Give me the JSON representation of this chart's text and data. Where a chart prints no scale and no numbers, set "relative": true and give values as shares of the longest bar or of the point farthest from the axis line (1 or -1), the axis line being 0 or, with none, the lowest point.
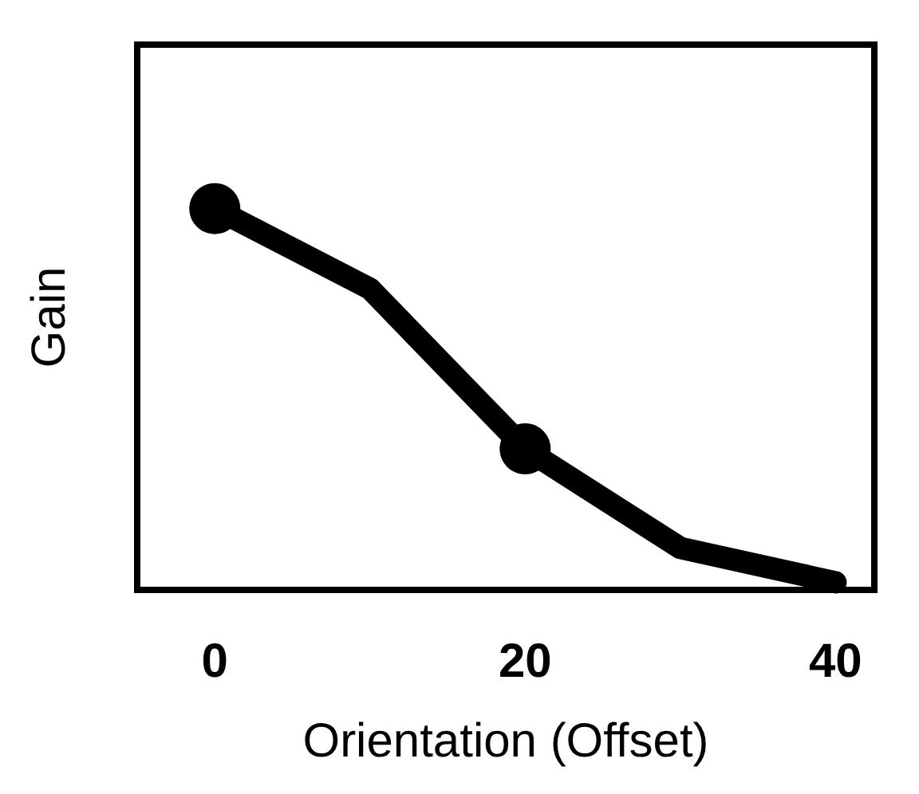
{
  "chart_data": {
    "type": "line",
    "xlabel": "Orientation (Offset)",
    "ylabel": "Gain",
    "relative": true,
    "x": [
      0,
      10,
      20,
      30,
      40
    ],
    "series": [
      {
        "color": "#000000",
        "values": [
          1,
          0.79,
          0.37,
          0.11,
          0.02
        ],
        "marker": "none"
      },
      {
        "type": "scatter",
        "color": "#000000",
        "x": [
          0,
          20
        ],
        "values": [
          1,
          0.37
        ],
        "marker": "circle"
      }
    ],
    "xlim": [
      -5,
      42.5
    ],
    "xticks": [
      0,
      20,
      40
    ],
    "tick_labels": "x",
    "grid": false
  }
}
